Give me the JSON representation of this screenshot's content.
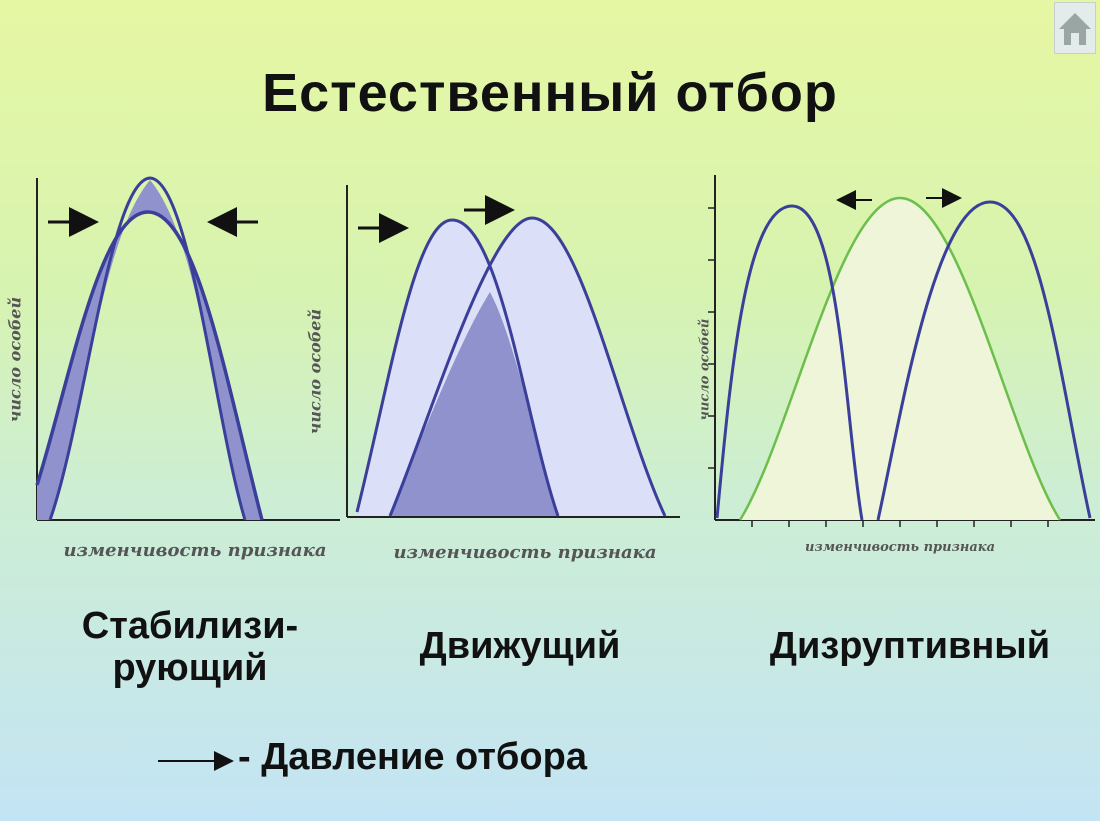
{
  "title": "Естественный отбор",
  "home_icon": "home-icon",
  "panels": [
    {
      "ylabel": "число особей",
      "xlabel": "изменчивость признака",
      "name_line1": "Стабилизи-",
      "name_line2": "рующий"
    },
    {
      "ylabel": "число особей",
      "xlabel": "изменчивость признака",
      "name": "Движущий"
    },
    {
      "ylabel": "число особей",
      "xlabel": "изменчивость признака",
      "name": "Дизруптивный"
    }
  ],
  "legend": {
    "arrow_icon": "arrow-right-icon",
    "text": "- Давление отбора"
  },
  "colors": {
    "curve": "#3a3f9a",
    "green_curve": "#6bbf4a",
    "light_fill": "#dcdff8",
    "dark_fill": "#8f92cc",
    "green_fill": "#eef5d8"
  }
}
